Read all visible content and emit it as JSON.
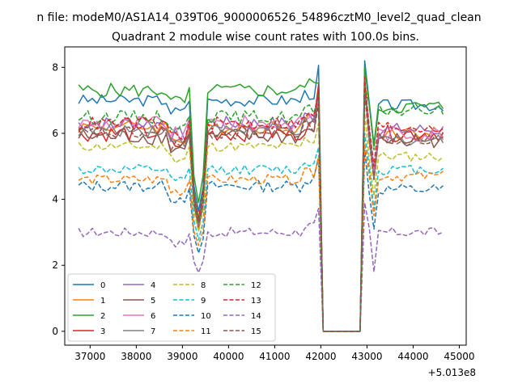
{
  "suptitle": "n file: modeM0/AS1A14_039T06_9000006526_54896cztM0_level2_quad_clean",
  "chart_data": {
    "type": "line",
    "title": "Quadrant 2 module wise count rates with 100.0s bins.",
    "xlabel": "",
    "ylabel": "",
    "x_offset_label": "+5.013e8",
    "xlim": [
      36450,
      45150
    ],
    "ylim": [
      -0.42,
      8.62
    ],
    "xticks": [
      37000,
      38000,
      39000,
      40000,
      41000,
      42000,
      43000,
      44000,
      45000
    ],
    "yticks": [
      0,
      2,
      4,
      6,
      8
    ],
    "grid": false,
    "legend": "lower left, 4 columns",
    "x": {
      "start": 36750,
      "step": 100,
      "count": 80
    },
    "gap": [
      42050,
      42850
    ],
    "series": [
      {
        "name": "0",
        "color": "#1f77b4",
        "linestyle": "solid",
        "base": 7.0,
        "dip": 3.6,
        "noise": 0.18,
        "post": 6.85,
        "peak": 8.2
      },
      {
        "name": "1",
        "color": "#ff7f0e",
        "linestyle": "solid",
        "base": 6.2,
        "dip": 3.3,
        "noise": 0.2,
        "post": 6.0,
        "peak": 7.5
      },
      {
        "name": "2",
        "color": "#2ca02c",
        "linestyle": "solid",
        "base": 7.3,
        "dip": 3.8,
        "noise": 0.22,
        "post": 6.8,
        "peak": 8.0
      },
      {
        "name": "3",
        "color": "#d62728",
        "linestyle": "solid",
        "base": 6.0,
        "dip": 3.1,
        "noise": 0.25,
        "post": 6.0,
        "peak": 7.7
      },
      {
        "name": "4",
        "color": "#9467bd",
        "linestyle": "solid",
        "base": 6.3,
        "dip": 3.4,
        "noise": 0.22,
        "post": 6.1,
        "peak": 7.6
      },
      {
        "name": "5",
        "color": "#8c564b",
        "linestyle": "solid",
        "base": 5.9,
        "dip": 3.2,
        "noise": 0.25,
        "post": 5.8,
        "peak": 7.3
      },
      {
        "name": "6",
        "color": "#e377c2",
        "linestyle": "solid",
        "base": 6.3,
        "dip": 3.3,
        "noise": 0.25,
        "post": 6.0,
        "peak": 7.4
      },
      {
        "name": "7",
        "color": "#7f7f7f",
        "linestyle": "solid",
        "base": 6.1,
        "dip": 3.3,
        "noise": 0.2,
        "post": 5.8,
        "peak": 7.3
      },
      {
        "name": "8",
        "color": "#bcbd22",
        "linestyle": "dashed",
        "base": 5.6,
        "dip": 3.0,
        "noise": 0.15,
        "post": 5.3,
        "peak": 6.6
      },
      {
        "name": "9",
        "color": "#17becf",
        "linestyle": "dashed",
        "base": 4.9,
        "dip": 2.8,
        "noise": 0.15,
        "post": 4.9,
        "peak": 6.0
      },
      {
        "name": "10",
        "color": "#1f77b4",
        "linestyle": "dashed",
        "base": 4.4,
        "dip": 2.3,
        "noise": 0.18,
        "post": 4.3,
        "peak": 5.5
      },
      {
        "name": "11",
        "color": "#ff7f0e",
        "linestyle": "dashed",
        "base": 4.6,
        "dip": 2.6,
        "noise": 0.15,
        "post": 4.7,
        "peak": 5.7
      },
      {
        "name": "12",
        "color": "#2ca02c",
        "linestyle": "dashed",
        "base": 6.5,
        "dip": 3.5,
        "noise": 0.2,
        "post": 6.7,
        "peak": 7.4
      },
      {
        "name": "13",
        "color": "#d62728",
        "linestyle": "dashed",
        "base": 6.3,
        "dip": 3.4,
        "noise": 0.2,
        "post": 6.2,
        "peak": 7.6
      },
      {
        "name": "14",
        "color": "#9467bd",
        "linestyle": "dashed",
        "base": 3.0,
        "dip": 1.8,
        "noise": 0.15,
        "post": 3.0,
        "peak": 3.9
      },
      {
        "name": "15",
        "color": "#8c564b",
        "linestyle": "dashed",
        "base": 6.0,
        "dip": 3.2,
        "noise": 0.2,
        "post": 5.8,
        "peak": 7.2
      }
    ]
  }
}
